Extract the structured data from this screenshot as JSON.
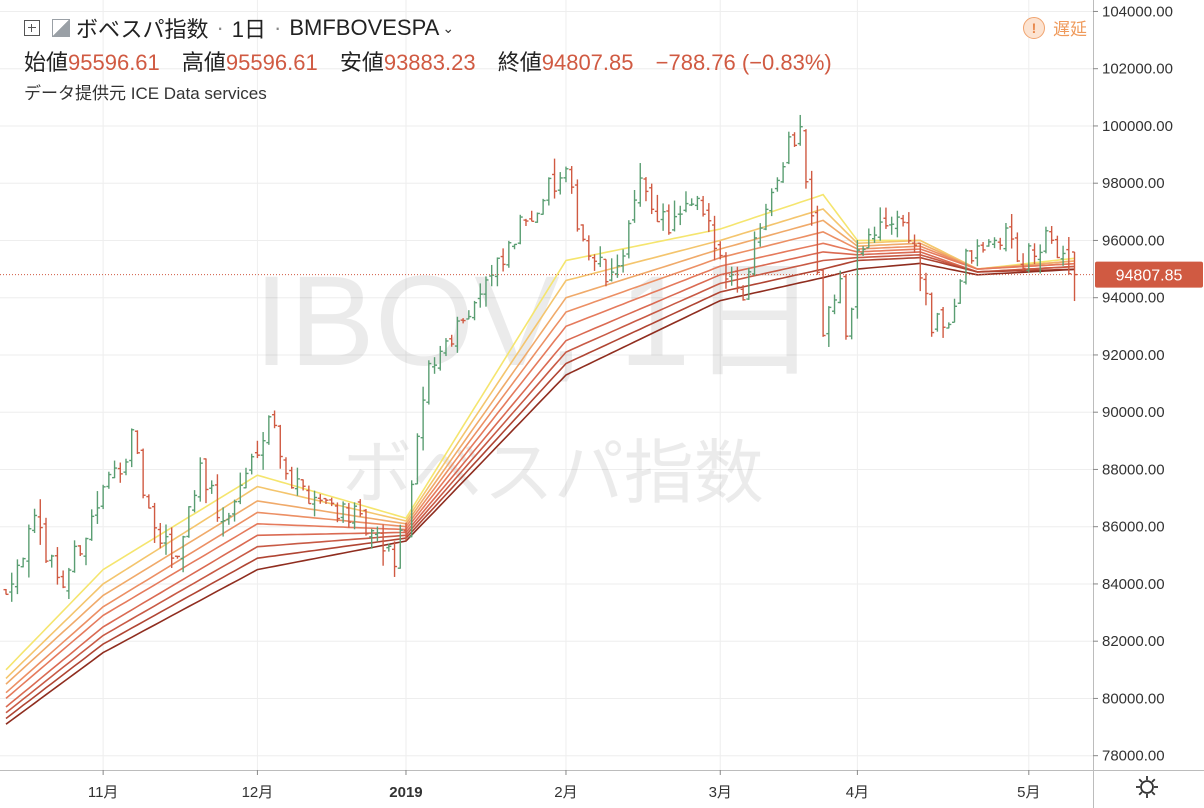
{
  "header": {
    "symbol_name": "ボベスパ指数",
    "interval": "1日",
    "exchange": "BMFBOVESPA",
    "ohlc": {
      "open_label": "始値",
      "open": "95596.61",
      "high_label": "高値",
      "high": "95596.61",
      "low_label": "安値",
      "low": "93883.23",
      "close_label": "終値",
      "close": "94807.85",
      "change": "−788.76 (−0.83%)"
    },
    "source": "データ提供元 ICE Data services",
    "delay_label": "遅延"
  },
  "watermark": {
    "ticker": "IBOV, 1日",
    "name": "ボベスパ指数"
  },
  "price_tag": "94807.85",
  "colors": {
    "up": "#5a9e72",
    "down": "#d05a42",
    "price_line": "#d05a42",
    "ribbon": [
      "#f5e56e",
      "#f4c56d",
      "#f0aa6a",
      "#ec8f64",
      "#e57a5c",
      "#da6a52",
      "#c85a45",
      "#b04533",
      "#8f2d1f"
    ]
  },
  "chart_data": {
    "type": "ohlc",
    "title": "ボベスパ指数",
    "ylim": [
      77500,
      104400
    ],
    "y_ticks": [
      "78000.00",
      "80000.00",
      "82000.00",
      "84000.00",
      "86000.00",
      "88000.00",
      "90000.00",
      "92000.00",
      "94000.00",
      "96000.00",
      "98000.00",
      "100000.00",
      "102000.00",
      "104000.00"
    ],
    "x_ticks": [
      "11月",
      "12月",
      "2019",
      "2月",
      "3月",
      "4月",
      "5月"
    ],
    "x_tick_bar_index": [
      17,
      44,
      70,
      98,
      125,
      149,
      179
    ],
    "last_close": 94807.85,
    "bar_count": 188,
    "series": [
      {
        "label": "MA1",
        "color": "#f5e56e",
        "points": [
          [
            0,
            81000
          ],
          [
            17,
            84500
          ],
          [
            44,
            87800
          ],
          [
            70,
            86300
          ],
          [
            98,
            95300
          ],
          [
            125,
            96400
          ],
          [
            143,
            97600
          ],
          [
            149,
            96000
          ],
          [
            160,
            96000
          ],
          [
            170,
            95000
          ],
          [
            188,
            95400
          ]
        ]
      },
      {
        "label": "MA2",
        "color": "#f4c56d",
        "points": [
          [
            0,
            80700
          ],
          [
            17,
            84000
          ],
          [
            44,
            87400
          ],
          [
            70,
            86200
          ],
          [
            98,
            94600
          ],
          [
            125,
            96000
          ],
          [
            143,
            97100
          ],
          [
            149,
            95900
          ],
          [
            160,
            96000
          ],
          [
            170,
            95000
          ],
          [
            188,
            95300
          ]
        ]
      },
      {
        "label": "MA3",
        "color": "#f0aa6a",
        "points": [
          [
            0,
            80500
          ],
          [
            17,
            83600
          ],
          [
            44,
            86900
          ],
          [
            70,
            86100
          ],
          [
            98,
            94000
          ],
          [
            125,
            95700
          ],
          [
            143,
            96700
          ],
          [
            149,
            95800
          ],
          [
            160,
            95900
          ],
          [
            170,
            95000
          ],
          [
            188,
            95300
          ]
        ]
      },
      {
        "label": "MA4",
        "color": "#ec8f64",
        "points": [
          [
            0,
            80200
          ],
          [
            17,
            83200
          ],
          [
            44,
            86500
          ],
          [
            70,
            86000
          ],
          [
            98,
            93500
          ],
          [
            125,
            95400
          ],
          [
            143,
            96300
          ],
          [
            149,
            95700
          ],
          [
            160,
            95800
          ],
          [
            170,
            95000
          ],
          [
            188,
            95200
          ]
        ]
      },
      {
        "label": "MA5",
        "color": "#e57a5c",
        "points": [
          [
            0,
            80000
          ],
          [
            17,
            82900
          ],
          [
            44,
            86100
          ],
          [
            70,
            85900
          ],
          [
            98,
            93000
          ],
          [
            125,
            95100
          ],
          [
            143,
            95900
          ],
          [
            149,
            95600
          ],
          [
            160,
            95700
          ],
          [
            170,
            95000
          ],
          [
            188,
            95200
          ]
        ]
      },
      {
        "label": "MA6",
        "color": "#da6a52",
        "points": [
          [
            0,
            79700
          ],
          [
            17,
            82500
          ],
          [
            44,
            85700
          ],
          [
            70,
            85800
          ],
          [
            98,
            92500
          ],
          [
            125,
            94800
          ],
          [
            143,
            95600
          ],
          [
            149,
            95500
          ],
          [
            160,
            95600
          ],
          [
            170,
            94900
          ],
          [
            188,
            95100
          ]
        ]
      },
      {
        "label": "MA7",
        "color": "#c85a45",
        "points": [
          [
            0,
            79500
          ],
          [
            17,
            82200
          ],
          [
            44,
            85300
          ],
          [
            70,
            85700
          ],
          [
            98,
            92100
          ],
          [
            125,
            94500
          ],
          [
            143,
            95300
          ],
          [
            149,
            95400
          ],
          [
            160,
            95500
          ],
          [
            170,
            94900
          ],
          [
            188,
            95100
          ]
        ]
      },
      {
        "label": "MA8",
        "color": "#b04533",
        "points": [
          [
            0,
            79300
          ],
          [
            17,
            81900
          ],
          [
            44,
            84900
          ],
          [
            70,
            85600
          ],
          [
            98,
            91700
          ],
          [
            125,
            94200
          ],
          [
            143,
            95000
          ],
          [
            149,
            95300
          ],
          [
            160,
            95400
          ],
          [
            170,
            94900
          ],
          [
            188,
            95000
          ]
        ]
      },
      {
        "label": "MA9",
        "color": "#8f2d1f",
        "points": [
          [
            0,
            79100
          ],
          [
            17,
            81600
          ],
          [
            44,
            84500
          ],
          [
            70,
            85500
          ],
          [
            98,
            91300
          ],
          [
            125,
            93900
          ],
          [
            143,
            94700
          ],
          [
            149,
            95000
          ],
          [
            160,
            95200
          ],
          [
            170,
            94800
          ],
          [
            188,
            95000
          ]
        ]
      }
    ],
    "close_anchors": [
      [
        0,
        84000
      ],
      [
        5,
        86000
      ],
      [
        10,
        84000
      ],
      [
        17,
        87200
      ],
      [
        22,
        89000
      ],
      [
        26,
        85600
      ],
      [
        30,
        85000
      ],
      [
        34,
        88200
      ],
      [
        38,
        86000
      ],
      [
        42,
        87800
      ],
      [
        46,
        90000
      ],
      [
        50,
        87500
      ],
      [
        55,
        87000
      ],
      [
        60,
        86500
      ],
      [
        65,
        85400
      ],
      [
        68,
        84900
      ],
      [
        70,
        86000
      ],
      [
        74,
        91500
      ],
      [
        78,
        92800
      ],
      [
        83,
        94200
      ],
      [
        87,
        95200
      ],
      [
        91,
        96800
      ],
      [
        95,
        97800
      ],
      [
        98,
        98100
      ],
      [
        102,
        95500
      ],
      [
        106,
        94500
      ],
      [
        111,
        97800
      ],
      [
        116,
        96500
      ],
      [
        121,
        97200
      ],
      [
        125,
        95400
      ],
      [
        129,
        94200
      ],
      [
        133,
        97500
      ],
      [
        137,
        99300
      ],
      [
        139,
        100000
      ],
      [
        140,
        98000
      ],
      [
        141,
        97300
      ],
      [
        143,
        93000
      ],
      [
        146,
        94500
      ],
      [
        147,
        92300
      ],
      [
        149,
        95500
      ],
      [
        152,
        96200
      ],
      [
        156,
        96900
      ],
      [
        159,
        95800
      ],
      [
        162,
        92900
      ],
      [
        165,
        93200
      ],
      [
        168,
        95300
      ],
      [
        172,
        95800
      ],
      [
        175,
        96200
      ],
      [
        178,
        95200
      ],
      [
        182,
        95900
      ],
      [
        185,
        95600
      ],
      [
        187,
        94807.85
      ]
    ]
  }
}
